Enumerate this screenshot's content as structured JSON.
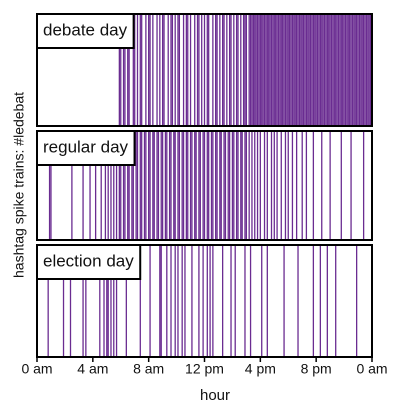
{
  "chart_data": {
    "type": "eventplot",
    "xlabel": "hour",
    "ylabel": "hashtag spike trains: #ledebat",
    "xlim": [
      0,
      24
    ],
    "xticks": [
      {
        "value": 0,
        "label": "0 am"
      },
      {
        "value": 4,
        "label": "4 am"
      },
      {
        "value": 8,
        "label": "8 am"
      },
      {
        "value": 12,
        "label": "12 pm"
      },
      {
        "value": 16,
        "label": "4 pm"
      },
      {
        "value": 20,
        "label": "8 pm"
      },
      {
        "value": 24,
        "label": "0 am"
      }
    ],
    "series": [
      {
        "name": "debate day",
        "color": "#6a2c91",
        "values": [
          5.9,
          6.0,
          6.2,
          6.3,
          6.5,
          6.6,
          6.9,
          7.0,
          7.2,
          7.4,
          7.5,
          7.8,
          8.0,
          8.1,
          8.3,
          8.6,
          8.8,
          9.0,
          9.1,
          9.4,
          9.6,
          9.7,
          9.9,
          10.1,
          10.2,
          10.5,
          10.7,
          10.8,
          11.0,
          11.3,
          11.5,
          11.6,
          11.8,
          12.0,
          12.2,
          12.3,
          12.6,
          12.8,
          12.9,
          13.1,
          13.3,
          13.4,
          13.6,
          13.8,
          13.9,
          14.1,
          14.3,
          14.4,
          14.6,
          14.8,
          14.9,
          15.0,
          15.2,
          15.3,
          15.4,
          15.5,
          15.6,
          15.7,
          15.8,
          15.9,
          16.0,
          16.1,
          16.2,
          16.3,
          16.4,
          16.5,
          16.6,
          16.7,
          16.8,
          16.9,
          17.0,
          17.1,
          17.2,
          17.3,
          17.4,
          17.5,
          17.6,
          17.7,
          17.8,
          17.9,
          18.0,
          18.1,
          18.2,
          18.3,
          18.4,
          18.5,
          18.6,
          18.7,
          18.8,
          18.9,
          19.0,
          19.1,
          19.2,
          19.3,
          19.4,
          19.5,
          19.6,
          19.7,
          19.8,
          19.9,
          20.0,
          20.1,
          20.2,
          20.3,
          20.4,
          20.5,
          20.6,
          20.7,
          20.8,
          20.9,
          21.0,
          21.1,
          21.2,
          21.3,
          21.4,
          21.5,
          21.6,
          21.7,
          21.8,
          21.9,
          22.0,
          22.1,
          22.2,
          22.3,
          22.4,
          22.5,
          22.6,
          22.7,
          22.8,
          22.9,
          23.0,
          23.1,
          23.2,
          23.3,
          23.4,
          23.5,
          23.6,
          23.7,
          23.8,
          23.9
        ]
      },
      {
        "name": "regular day",
        "color": "#6a2c91",
        "values": [
          0.9,
          1.0,
          2.5,
          3.3,
          3.8,
          4.2,
          4.6,
          4.9,
          5.1,
          5.3,
          5.5,
          5.7,
          5.9,
          6.0,
          6.2,
          6.3,
          6.5,
          6.6,
          6.8,
          6.9,
          7.1,
          7.2,
          7.4,
          7.5,
          7.7,
          7.8,
          8.0,
          8.1,
          8.3,
          8.4,
          8.6,
          8.7,
          8.9,
          9.0,
          9.2,
          9.3,
          9.5,
          9.6,
          9.8,
          9.9,
          10.1,
          10.2,
          10.4,
          10.5,
          10.7,
          10.8,
          11.0,
          11.1,
          11.3,
          11.4,
          11.6,
          11.7,
          11.9,
          12.0,
          12.2,
          12.3,
          12.5,
          12.6,
          12.8,
          12.9,
          13.1,
          13.2,
          13.4,
          13.5,
          13.7,
          13.8,
          14.0,
          14.1,
          14.3,
          14.4,
          14.6,
          14.7,
          14.9,
          15.0,
          15.2,
          15.4,
          15.6,
          15.8,
          16.0,
          16.3,
          16.5,
          16.8,
          17.0,
          17.2,
          17.5,
          17.8,
          18.0,
          18.3,
          18.6,
          19.0,
          19.3,
          19.8,
          20.4,
          21.0,
          21.8,
          22.5,
          23.4
        ]
      },
      {
        "name": "election day",
        "color": "#6a2c91",
        "values": [
          0.8,
          1.9,
          2.4,
          3.3,
          3.5,
          4.5,
          4.8,
          5.0,
          5.1,
          5.3,
          5.5,
          5.7,
          6.4,
          7.4,
          8.1,
          8.8,
          8.9,
          9.3,
          9.6,
          9.9,
          10.1,
          10.4,
          10.6,
          11.1,
          11.6,
          11.9,
          12.2,
          12.4,
          12.6,
          13.3,
          13.9,
          14.2,
          14.9,
          15.3,
          16.1,
          16.5,
          17.7,
          18.7,
          19.8,
          20.3,
          20.8,
          21.4,
          22.9
        ]
      }
    ]
  }
}
